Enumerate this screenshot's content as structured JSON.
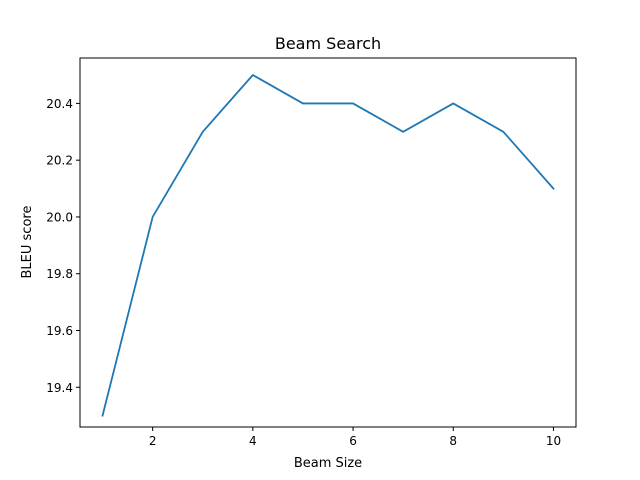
{
  "chart_data": {
    "type": "line",
    "title": "Beam Search",
    "xlabel": "Beam Size",
    "ylabel": "BLEU score",
    "x": [
      1,
      2,
      3,
      4,
      5,
      6,
      7,
      8,
      9,
      10
    ],
    "series": [
      {
        "values": [
          19.3,
          20.0,
          20.3,
          20.5,
          20.4,
          20.4,
          20.3,
          20.4,
          20.3,
          20.1
        ],
        "color": "#1f77b4"
      }
    ],
    "xlim": [
      0.55,
      10.45
    ],
    "ylim": [
      19.26,
      20.56
    ],
    "xticks": [
      2,
      4,
      6,
      8,
      10
    ],
    "xtick_labels": [
      "2",
      "4",
      "6",
      "8",
      "10"
    ],
    "yticks": [
      19.4,
      19.6,
      19.8,
      20.0,
      20.2,
      20.4
    ],
    "ytick_labels": [
      "19.4",
      "19.6",
      "19.8",
      "20.0",
      "20.2",
      "20.4"
    ],
    "grid": false,
    "legend": "none"
  }
}
